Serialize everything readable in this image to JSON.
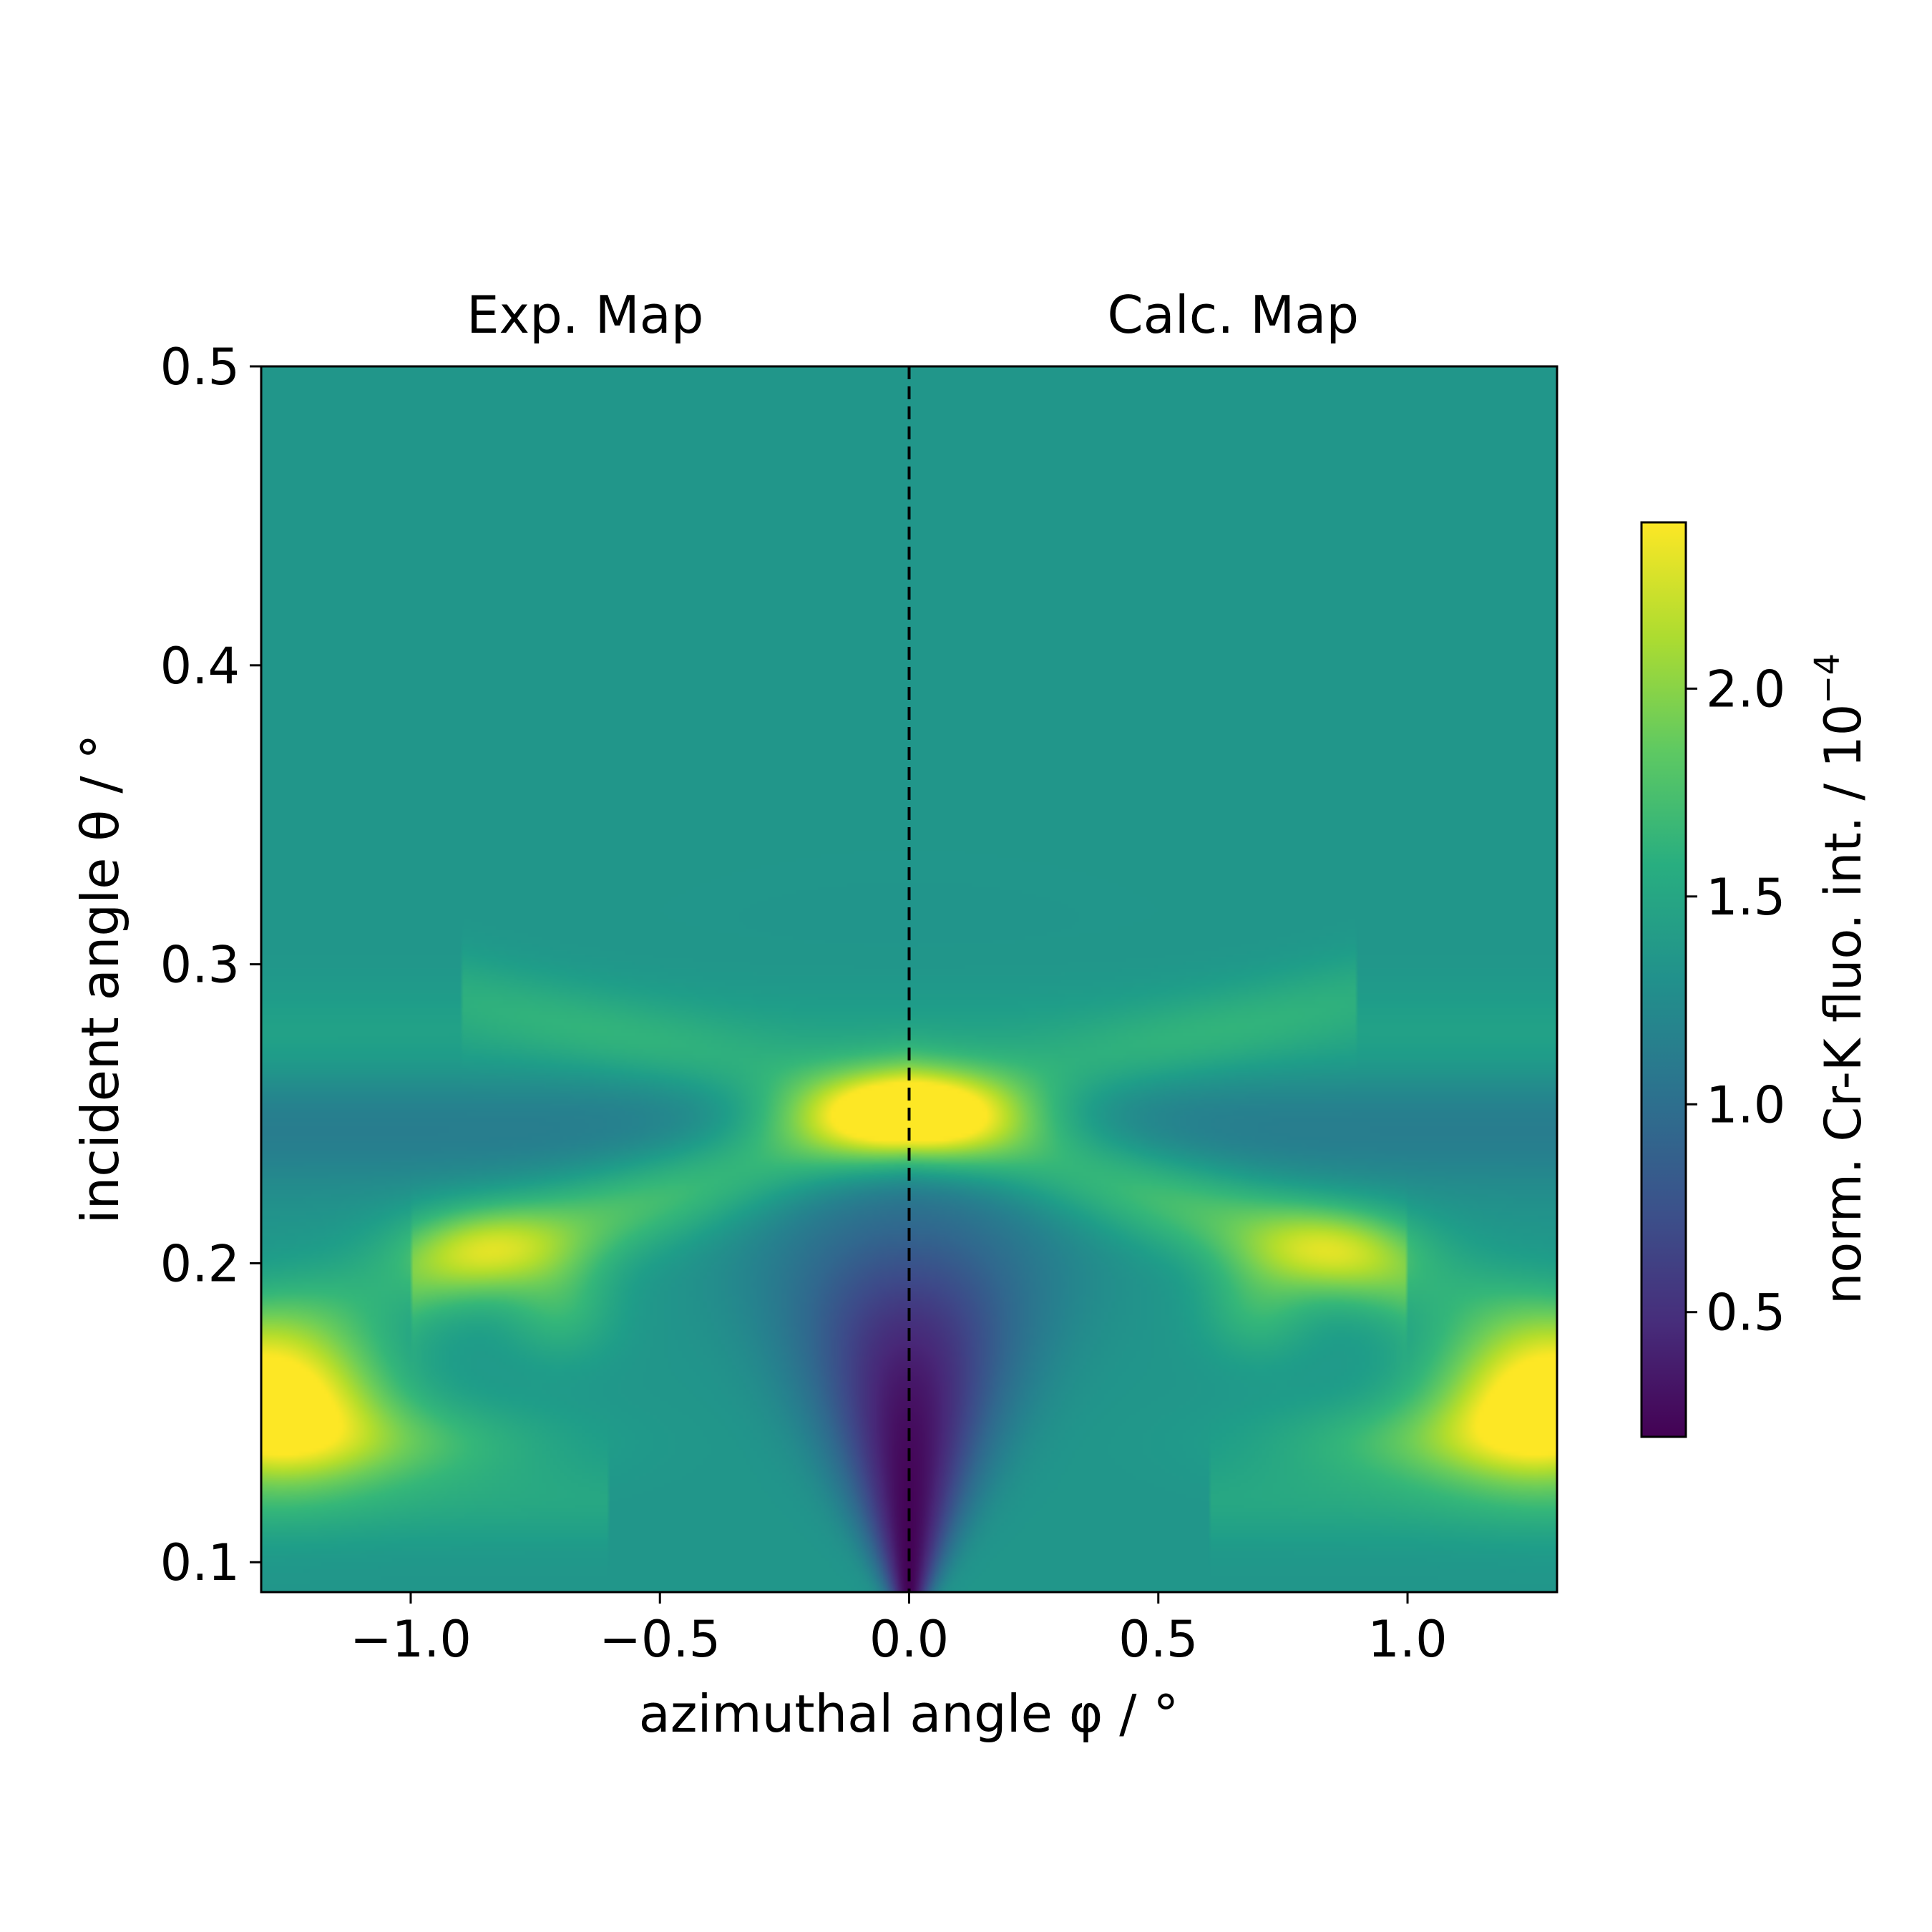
{
  "chart_data": {
    "type": "heatmap",
    "panel_titles": [
      "Exp. Map",
      "Calc. Map"
    ],
    "xlabel": "azimuthal angle φ / °",
    "ylabel": "incident angle θ / °",
    "xlim": [
      -1.3,
      1.3
    ],
    "ylim": [
      0.09,
      0.5
    ],
    "x_ticks": [
      -1.0,
      -0.5,
      0.0,
      0.5,
      1.0
    ],
    "x_tick_labels": [
      "−1.0",
      "−0.5",
      "0.0",
      "0.5",
      "1.0"
    ],
    "y_ticks": [
      0.1,
      0.2,
      0.3,
      0.4,
      0.5
    ],
    "y_tick_labels": [
      "0.1",
      "0.2",
      "0.3",
      "0.4",
      "0.5"
    ],
    "divider_x": 0.0,
    "divider_style": "dashed",
    "colormap": "viridis",
    "colorbar": {
      "label": "norm. Cr-K fluo. int. / 10",
      "label_exponent": "−4",
      "range": [
        0.2,
        2.4
      ],
      "ticks": [
        0.5,
        1.0,
        1.5,
        2.0
      ],
      "tick_labels": [
        "0.5",
        "1.0",
        "1.5",
        "2.0"
      ]
    },
    "features": [
      {
        "x": 0.0,
        "y": 0.25,
        "value": 2.3
      },
      {
        "x": -1.25,
        "y": 0.155,
        "value": 2.4
      },
      {
        "x": 1.25,
        "y": 0.155,
        "value": 2.4
      },
      {
        "x": -0.85,
        "y": 0.205,
        "value": 1.9
      },
      {
        "x": 0.85,
        "y": 0.205,
        "value": 1.9
      },
      {
        "x": 0.0,
        "y": 0.1,
        "value": 0.2
      },
      {
        "x": 0.0,
        "y": 0.45,
        "value": 1.4
      }
    ]
  }
}
